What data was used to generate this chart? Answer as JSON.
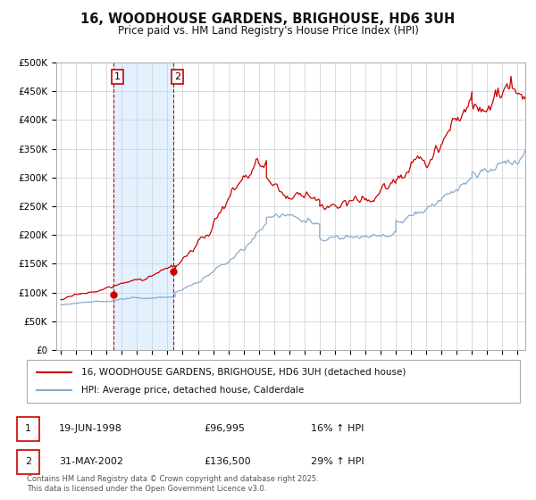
{
  "title": "16, WOODHOUSE GARDENS, BRIGHOUSE, HD6 3UH",
  "subtitle": "Price paid vs. HM Land Registry's House Price Index (HPI)",
  "legend_line1": "16, WOODHOUSE GARDENS, BRIGHOUSE, HD6 3UH (detached house)",
  "legend_line2": "HPI: Average price, detached house, Calderdale",
  "footer1": "Contains HM Land Registry data © Crown copyright and database right 2025.",
  "footer2": "This data is licensed under the Open Government Licence v3.0.",
  "red_color": "#cc0000",
  "blue_color": "#88aacc",
  "shading_color": "#ddeeff",
  "yticks": [
    0,
    50000,
    100000,
    150000,
    200000,
    250000,
    300000,
    350000,
    400000,
    450000,
    500000
  ],
  "ylabels": [
    "£0",
    "£50K",
    "£100K",
    "£150K",
    "£200K",
    "£250K",
    "£300K",
    "£350K",
    "£400K",
    "£450K",
    "£500K"
  ],
  "xmin": 1994.7,
  "xmax": 2025.5,
  "ymin": 0,
  "ymax": 500000,
  "sale1_year": 1998.46,
  "sale1_price": 96995,
  "sale2_year": 2002.41,
  "sale2_price": 136500,
  "table_rows": [
    [
      "1",
      "19-JUN-1998",
      "£96,995",
      "16% ↑ HPI"
    ],
    [
      "2",
      "31-MAY-2002",
      "£136,500",
      "29% ↑ HPI"
    ]
  ]
}
